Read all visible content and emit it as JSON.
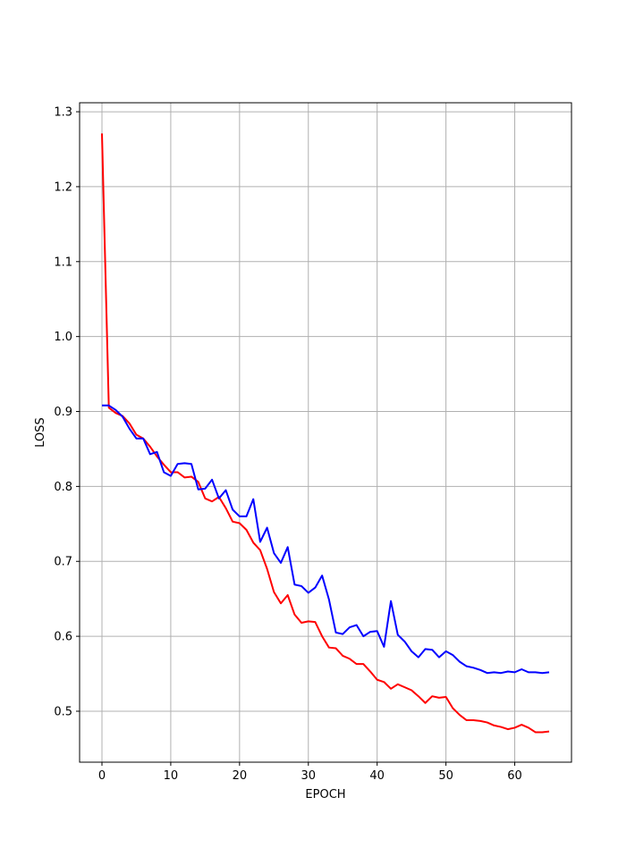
{
  "chart_data": {
    "type": "line",
    "title": "",
    "xlabel": "EPOCH",
    "ylabel": "LOSS",
    "xlim": [
      -3.25,
      68.25
    ],
    "ylim": [
      0.432,
      1.312
    ],
    "xticks": [
      0,
      10,
      20,
      30,
      40,
      50,
      60
    ],
    "yticks": [
      0.5,
      0.6,
      0.7,
      0.8,
      0.9,
      1.0,
      1.1,
      1.2,
      1.3
    ],
    "ytick_labels": [
      "0.5",
      "0.6",
      "0.7",
      "0.8",
      "0.9",
      "1.0",
      "1.1",
      "1.2",
      "1.3"
    ],
    "grid": true,
    "series": [
      {
        "color": "#ff0000",
        "x": [
          0,
          1,
          2,
          3,
          4,
          5,
          6,
          7,
          8,
          9,
          10,
          11,
          12,
          13,
          14,
          15,
          16,
          17,
          18,
          19,
          20,
          21,
          22,
          23,
          24,
          25,
          26,
          27,
          28,
          29,
          30,
          31,
          32,
          33,
          34,
          35,
          36,
          37,
          38,
          39,
          40,
          41,
          42,
          43,
          44,
          45,
          46,
          47,
          48,
          49,
          50,
          51,
          52,
          53,
          54,
          55,
          56,
          57,
          58,
          59,
          60,
          61,
          62,
          63,
          64,
          65
        ],
        "values": [
          1.271,
          0.905,
          0.898,
          0.894,
          0.884,
          0.869,
          0.864,
          0.853,
          0.84,
          0.829,
          0.819,
          0.819,
          0.812,
          0.813,
          0.806,
          0.784,
          0.78,
          0.786,
          0.771,
          0.753,
          0.751,
          0.742,
          0.725,
          0.715,
          0.69,
          0.659,
          0.644,
          0.655,
          0.629,
          0.618,
          0.62,
          0.619,
          0.6,
          0.585,
          0.584,
          0.574,
          0.57,
          0.563,
          0.563,
          0.553,
          0.542,
          0.539,
          0.53,
          0.536,
          0.532,
          0.528,
          0.52,
          0.511,
          0.52,
          0.518,
          0.519,
          0.504,
          0.495,
          0.488,
          0.488,
          0.487,
          0.485,
          0.481,
          0.479,
          0.476,
          0.478,
          0.482,
          0.478,
          0.472,
          0.472,
          0.473
        ]
      },
      {
        "color": "#0000ff",
        "x": [
          0,
          1,
          2,
          3,
          4,
          5,
          6,
          7,
          8,
          9,
          10,
          11,
          12,
          13,
          14,
          15,
          16,
          17,
          18,
          19,
          20,
          21,
          22,
          23,
          24,
          25,
          26,
          27,
          28,
          29,
          30,
          31,
          32,
          33,
          34,
          35,
          36,
          37,
          38,
          39,
          40,
          41,
          42,
          43,
          44,
          45,
          46,
          47,
          48,
          49,
          50,
          51,
          52,
          53,
          54,
          55,
          56,
          57,
          58,
          59,
          60,
          61,
          62,
          63,
          64,
          65
        ],
        "values": [
          0.908,
          0.908,
          0.902,
          0.893,
          0.877,
          0.864,
          0.864,
          0.843,
          0.846,
          0.819,
          0.814,
          0.83,
          0.831,
          0.83,
          0.796,
          0.797,
          0.809,
          0.784,
          0.795,
          0.769,
          0.76,
          0.76,
          0.783,
          0.726,
          0.745,
          0.711,
          0.698,
          0.719,
          0.669,
          0.667,
          0.658,
          0.665,
          0.681,
          0.649,
          0.605,
          0.603,
          0.612,
          0.615,
          0.6,
          0.606,
          0.607,
          0.586,
          0.647,
          0.602,
          0.593,
          0.58,
          0.572,
          0.583,
          0.582,
          0.572,
          0.58,
          0.575,
          0.566,
          0.56,
          0.558,
          0.555,
          0.551,
          0.552,
          0.551,
          0.553,
          0.552,
          0.556,
          0.552,
          0.552,
          0.551,
          0.552
        ]
      }
    ]
  }
}
